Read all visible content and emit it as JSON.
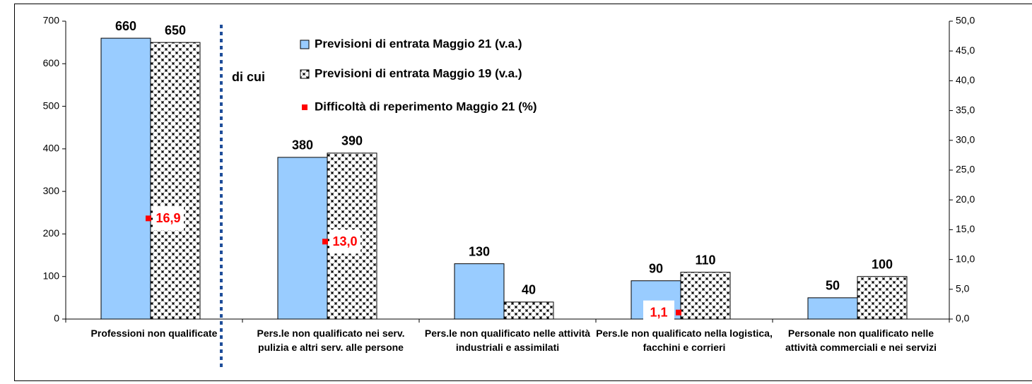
{
  "chart_data": {
    "type": "bar",
    "categories": [
      "Professioni non qualificate",
      "Pers.le non qualificato nei serv. pulizia e altri serv. alle persone",
      "Pers.le non qualificato nelle attività industriali e assimilati",
      "Pers.le non qualificato nella logistica, facchini e corrieri",
      "Personale non qualificato nelle attività commerciali e nei servizi"
    ],
    "series": [
      {
        "name": "Previsioni di entrata Maggio 21 (v.a.)",
        "color": "#99ccff",
        "values": [
          660,
          380,
          130,
          90,
          50
        ]
      },
      {
        "name": "Previsioni di entrata Maggio 19 (v.a.)",
        "color": "#000000",
        "values": [
          650,
          390,
          40,
          110,
          100
        ]
      },
      {
        "name": "Difficoltà di reperimento Maggio 21 (%)",
        "color": "#ff0000",
        "axis": "y2",
        "values": [
          16.9,
          13.0,
          null,
          1.1,
          null
        ],
        "value_labels": [
          "16,9",
          "13,0",
          null,
          "1,1",
          null
        ]
      }
    ],
    "annotations": [
      "di cui"
    ],
    "ylim": [
      0,
      700
    ],
    "yticks": [
      0,
      100,
      200,
      300,
      400,
      500,
      600,
      700
    ],
    "y2lim": [
      0,
      50
    ],
    "y2ticks": [
      {
        "value": 0,
        "label": "0,0"
      },
      {
        "value": 5,
        "label": "5,0"
      },
      {
        "value": 10,
        "label": "10,0"
      },
      {
        "value": 15,
        "label": "15,0"
      },
      {
        "value": 20,
        "label": "20,0"
      },
      {
        "value": 25,
        "label": "25,0"
      },
      {
        "value": 30,
        "label": "30,0"
      },
      {
        "value": 35,
        "label": "35,0"
      },
      {
        "value": 40,
        "label": "40,0"
      },
      {
        "value": 45,
        "label": "45,0"
      },
      {
        "value": 50,
        "label": "50,0"
      }
    ],
    "legend": "top"
  }
}
